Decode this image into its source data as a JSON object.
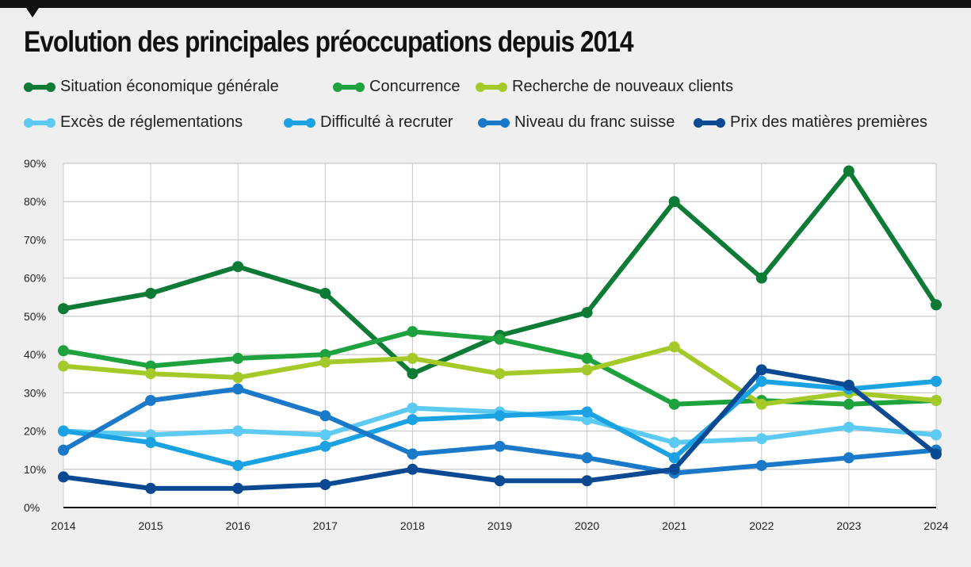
{
  "chart_data": {
    "type": "line",
    "title": "Evolution des principales préoccupations depuis 2014",
    "xlabel": "",
    "ylabel": "",
    "x": [
      "2014",
      "2015",
      "2016",
      "2017",
      "2018",
      "2019",
      "2020",
      "2021",
      "2022",
      "2023",
      "2024"
    ],
    "ylim": [
      0,
      90
    ],
    "yticks": [
      "0%",
      "10%",
      "20%",
      "30%",
      "40%",
      "50%",
      "60%",
      "70%",
      "80%",
      "90%"
    ],
    "grid": true,
    "legend_placement": "top",
    "series": [
      {
        "name": "Situation économique générale",
        "color": "#0d7a35",
        "values": [
          52,
          56,
          63,
          56,
          35,
          45,
          51,
          80,
          60,
          88,
          53
        ]
      },
      {
        "name": "Concurrence",
        "color": "#1ea23e",
        "values": [
          41,
          37,
          39,
          40,
          46,
          44,
          39,
          27,
          28,
          27,
          28
        ]
      },
      {
        "name": "Recherche de nouveaux clients",
        "color": "#a6c92a",
        "values": [
          37,
          35,
          34,
          38,
          39,
          35,
          36,
          42,
          27,
          30,
          28
        ]
      },
      {
        "name": "Excès de réglementations",
        "color": "#5ccaf2",
        "values": [
          20,
          19,
          20,
          19,
          26,
          25,
          23,
          17,
          18,
          21,
          19
        ]
      },
      {
        "name": "Difficulté à recruter",
        "color": "#1ba2e2",
        "values": [
          20,
          17,
          11,
          16,
          23,
          24,
          25,
          13,
          33,
          31,
          33
        ]
      },
      {
        "name": "Niveau du franc suisse",
        "color": "#1a79c9",
        "values": [
          15,
          28,
          31,
          24,
          14,
          16,
          13,
          9,
          11,
          13,
          15
        ]
      },
      {
        "name": "Prix des matières premières",
        "color": "#0b4a92",
        "values": [
          8,
          5,
          5,
          6,
          10,
          7,
          7,
          10,
          36,
          32,
          14
        ]
      }
    ]
  }
}
